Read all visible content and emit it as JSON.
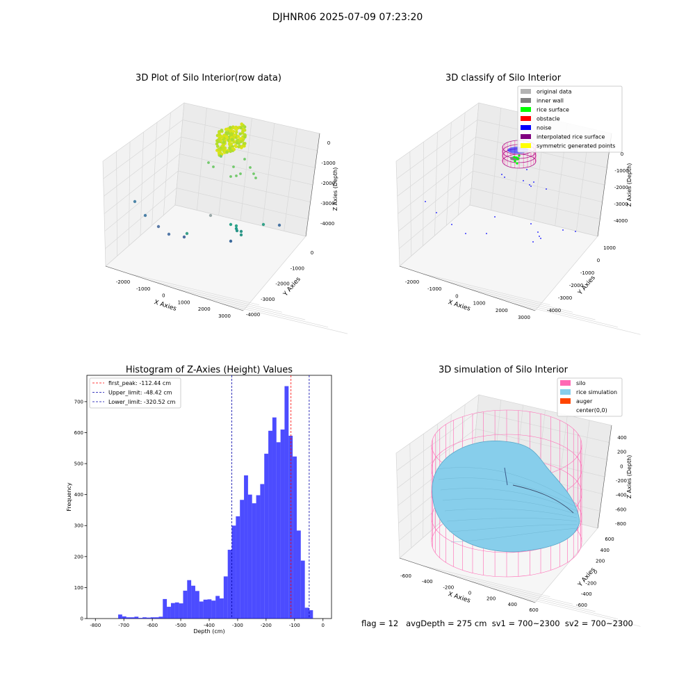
{
  "figure": {
    "suptitle": "DJHNR06 2025-07-09 07:23:20",
    "status_line": "flag = 12   avgDepth = 275 cm  sv1 = 700~2300  sv2 = 700~2300"
  },
  "panels": {
    "raw": {
      "title": "3D Plot of Silo Interior(row data)",
      "xlabel": "X Axies",
      "ylabel": "Y Axies",
      "zlabel": "Z Axies (Depth)",
      "xticks": [
        "-2000",
        "-1000",
        "0",
        "1000",
        "2000",
        "3000"
      ],
      "yticks": [
        "0",
        "-1000",
        "-2000",
        "-3000",
        "-4000"
      ],
      "zticks": [
        "0",
        "-1000",
        "-2000",
        "-3000",
        "-4000"
      ]
    },
    "classify": {
      "title": "3D classify of Silo Interior",
      "xlabel": "X Axies",
      "ylabel": "Y Axies",
      "zlabel": "Z Axies (Depth)",
      "xticks": [
        "-2000",
        "-1000",
        "0",
        "1000",
        "2000",
        "3000"
      ],
      "yticks": [
        "1000",
        "0",
        "-1000",
        "-2000",
        "-3000",
        "-4000"
      ],
      "zticks": [
        "0",
        "-1000",
        "-2000",
        "-3000",
        "-4000"
      ],
      "legend": [
        {
          "label": "original data",
          "color": "#b3b3b3"
        },
        {
          "label": "inner wall",
          "color": "#808080"
        },
        {
          "label": "rice surface",
          "color": "#00ff00"
        },
        {
          "label": "obstacle",
          "color": "#ff0000"
        },
        {
          "label": "noise",
          "color": "#0000ff"
        },
        {
          "label": "interpolated rice surface",
          "color": "#800080"
        },
        {
          "label": "symmetric generated points",
          "color": "#ffff00"
        }
      ]
    },
    "simulation": {
      "title": "3D simulation of Silo Interior",
      "xlabel": "X Axies",
      "ylabel": "Y Axies",
      "zlabel": "Z Axies (Depth)",
      "xticks": [
        "-600",
        "-400",
        "-200",
        "0",
        "200",
        "400",
        "600"
      ],
      "yticks": [
        "600",
        "400",
        "200",
        "0",
        "-200",
        "-400",
        "-600"
      ],
      "zticks": [
        "400",
        "200",
        "0",
        "-200",
        "-400",
        "-600",
        "-800"
      ],
      "legend": [
        {
          "label": "silo",
          "color": "#ff69b4"
        },
        {
          "label": "rice simulation",
          "color": "#87ceeb"
        },
        {
          "label": "auger",
          "color": "#ff4500"
        },
        {
          "label": "center(0,0)",
          "color": "#ffffff"
        }
      ]
    }
  },
  "chart_data": {
    "type": "bar",
    "title": "Histogram of Z-Axies (Height) Values",
    "xlabel": "Depth (cm)",
    "ylabel": "Frequency",
    "xlim": [
      -830,
      30
    ],
    "ylim": [
      0,
      785
    ],
    "xticks": [
      -800,
      -700,
      -600,
      -500,
      -400,
      -300,
      -200,
      -100,
      0
    ],
    "yticks": [
      0,
      100,
      200,
      300,
      400,
      500,
      600,
      700
    ],
    "bin_width": 14.27,
    "bin_starts": [
      -720,
      -705.7,
      -691.5,
      -677.2,
      -662.9,
      -648.7,
      -634.4,
      -620.1,
      -605.9,
      -591.6,
      -577.3,
      -563.1,
      -548.8,
      -534.5,
      -520.3,
      -506,
      -491.7,
      -477.5,
      -463.2,
      -448.9,
      -434.7,
      -420.4,
      -406.1,
      -391.9,
      -377.6,
      -363.3,
      -349.1,
      -334.8,
      -320.5,
      -306.3,
      -292,
      -277.7,
      -263.5,
      -249.2,
      -234.9,
      -220.7,
      -206.4,
      -192.1,
      -177.9,
      -163.6,
      -149.3,
      -135.1,
      -120.8,
      -106.5,
      -92.3,
      -78,
      -63.7,
      -49.5,
      -35.2,
      -20.9,
      -6.7
    ],
    "series": [
      {
        "color": "#0000ff",
        "values": [
          13,
          7,
          4,
          4,
          6,
          2,
          4,
          3,
          4,
          4,
          6,
          63,
          38,
          50,
          52,
          49,
          90,
          124,
          106,
          89,
          55,
          61,
          62,
          58,
          73,
          65,
          136,
          222,
          300,
          330,
          383,
          462,
          400,
          372,
          398,
          434,
          532,
          606,
          649,
          569,
          610,
          750,
          590,
          523,
          284,
          187,
          35,
          27,
          0,
          0,
          0
        ]
      }
    ],
    "vlines": [
      {
        "label": "first_peak: -112.44 cm",
        "x": -112.44,
        "color": "#ff0000"
      },
      {
        "label": "Upper_limit: -48.42 cm",
        "x": -48.42,
        "color": "#0000aa"
      },
      {
        "label": "Lower_limit: -320.52 cm",
        "x": -320.52,
        "color": "#0000aa"
      }
    ]
  }
}
